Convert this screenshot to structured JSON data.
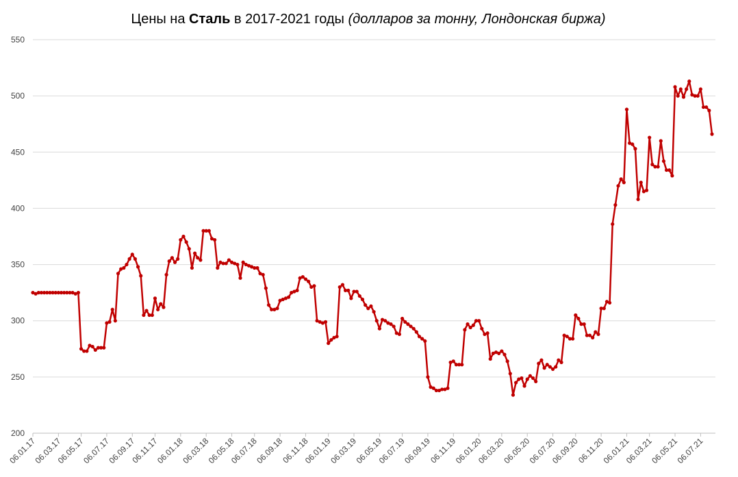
{
  "chart_data": {
    "type": "line",
    "title_parts": [
      "Цены на",
      "Сталь",
      "в 2017-2021 годы",
      "(долларов за тонну, Лондонская биржа)"
    ],
    "categories": [
      "06.01.17",
      null,
      null,
      null,
      null,
      null,
      null,
      null,
      null,
      "06.03.17",
      null,
      null,
      null,
      null,
      null,
      null,
      null,
      "06.05.17",
      null,
      null,
      null,
      null,
      null,
      null,
      null,
      null,
      "06.07.17",
      null,
      null,
      null,
      null,
      null,
      null,
      null,
      null,
      "06.09.17",
      null,
      null,
      null,
      null,
      null,
      null,
      null,
      "06.11.17",
      null,
      null,
      null,
      null,
      null,
      null,
      null,
      null,
      "06.01.18",
      null,
      null,
      null,
      null,
      null,
      null,
      null,
      null,
      "06.03.18",
      null,
      null,
      null,
      null,
      null,
      null,
      null,
      null,
      "06.05.18",
      null,
      null,
      null,
      null,
      null,
      null,
      null,
      "06.07.18",
      null,
      null,
      null,
      null,
      null,
      null,
      null,
      null,
      "06.09.18",
      null,
      null,
      null,
      null,
      null,
      null,
      null,
      null,
      "06.11.18",
      null,
      null,
      null,
      null,
      null,
      null,
      null,
      "06.01.19",
      null,
      null,
      null,
      null,
      null,
      null,
      null,
      null,
      "06.03.19",
      null,
      null,
      null,
      null,
      null,
      null,
      null,
      null,
      "06.05.19",
      null,
      null,
      null,
      null,
      null,
      null,
      null,
      "06.07.19",
      null,
      null,
      null,
      null,
      null,
      null,
      null,
      null,
      "06.09.19",
      null,
      null,
      null,
      null,
      null,
      null,
      null,
      null,
      "06.11.19",
      null,
      null,
      null,
      null,
      null,
      null,
      null,
      null,
      "06.01.20",
      null,
      null,
      null,
      null,
      null,
      null,
      null,
      "06.03.20",
      null,
      null,
      null,
      null,
      null,
      null,
      null,
      null,
      "06.05.20",
      null,
      null,
      null,
      null,
      null,
      null,
      null,
      null,
      "06.07.20",
      null,
      null,
      null,
      null,
      null,
      null,
      null,
      "06.09.20",
      null,
      null,
      null,
      null,
      null,
      null,
      null,
      null,
      "06.11.20",
      null,
      null,
      null,
      null,
      null,
      null,
      null,
      null,
      "06.01.21",
      null,
      null,
      null,
      null,
      null,
      null,
      null,
      "06.03.21",
      null,
      null,
      null,
      null,
      null,
      null,
      null,
      null,
      "06.05.21",
      null,
      null,
      null,
      null,
      null,
      null,
      null,
      null,
      "06.07.21",
      null,
      null,
      null,
      null
    ],
    "series": [
      {
        "color": "#c00000",
        "values": [
          325,
          324,
          325,
          325,
          325,
          325,
          325,
          325,
          325,
          325,
          325,
          325,
          325,
          325,
          325,
          324,
          325,
          275,
          273,
          273,
          278,
          277,
          274,
          276,
          276,
          276,
          298,
          299,
          310,
          300,
          342,
          346,
          347,
          350,
          355,
          359,
          355,
          348,
          340,
          305,
          309,
          305,
          305,
          320,
          310,
          315,
          312,
          341,
          353,
          356,
          352,
          355,
          372,
          375,
          370,
          364,
          347,
          360,
          356,
          354,
          380,
          380,
          380,
          373,
          372,
          347,
          352,
          351,
          351,
          354,
          352,
          351,
          350,
          338,
          352,
          350,
          349,
          348,
          347,
          347,
          342,
          341,
          329,
          314,
          310,
          310,
          311,
          318,
          319,
          320,
          321,
          325,
          326,
          327,
          338,
          339,
          337,
          335,
          330,
          331,
          300,
          299,
          298,
          299,
          280,
          283,
          285,
          286,
          330,
          332,
          327,
          327,
          320,
          326,
          326,
          322,
          319,
          314,
          311,
          313,
          308,
          300,
          293,
          301,
          300,
          298,
          297,
          295,
          289,
          288,
          302,
          299,
          297,
          295,
          293,
          290,
          286,
          284,
          282,
          250,
          241,
          240,
          238,
          238,
          239,
          239,
          240,
          263,
          264,
          261,
          261,
          261,
          292,
          297,
          294,
          296,
          300,
          300,
          293,
          288,
          289,
          266,
          271,
          272,
          271,
          273,
          270,
          264,
          253,
          234,
          245,
          248,
          249,
          242,
          248,
          251,
          249,
          246,
          262,
          265,
          258,
          261,
          259,
          257,
          259,
          265,
          263,
          287,
          286,
          284,
          284,
          305,
          302,
          297,
          297,
          287,
          287,
          285,
          290,
          288,
          311,
          311,
          317,
          316,
          386,
          403,
          420,
          426,
          423,
          488,
          458,
          457,
          453,
          408,
          423,
          415,
          416,
          463,
          439,
          437,
          437,
          460,
          442,
          434,
          434,
          429,
          508,
          500,
          506,
          499,
          506,
          513,
          501,
          500,
          500,
          506,
          490,
          490,
          487,
          466
        ]
      }
    ],
    "ylim": [
      200,
      550
    ],
    "yticks": [
      200,
      250,
      300,
      350,
      400,
      450,
      500,
      550
    ],
    "grid": true
  }
}
